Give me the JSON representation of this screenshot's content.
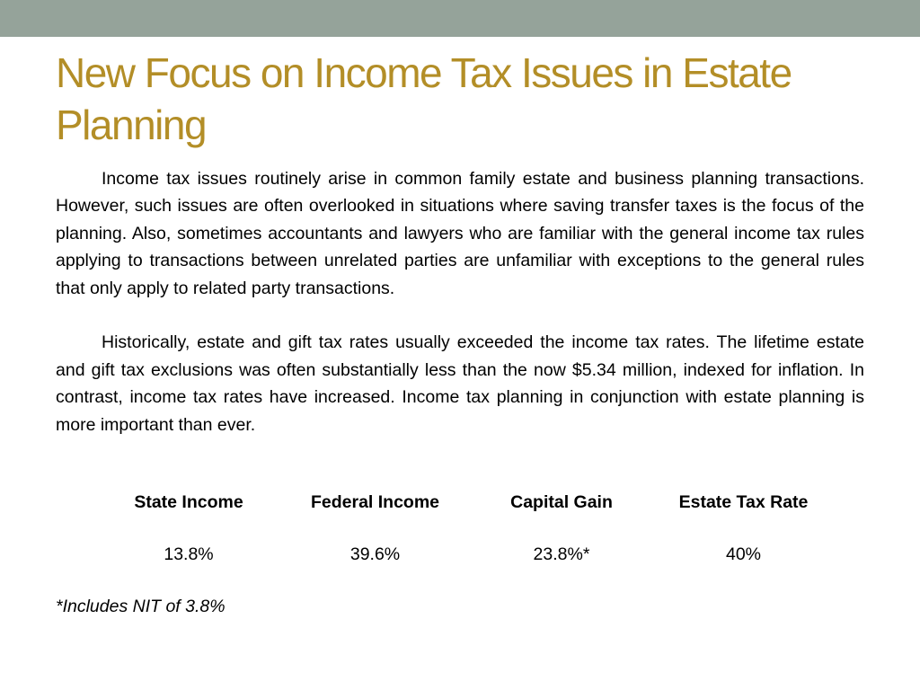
{
  "theme": {
    "top_bar_color": "#95a39a",
    "title_color": "#b38e27"
  },
  "slide": {
    "title": "New Focus on Income Tax Issues in Estate Planning",
    "paragraphs": [
      "Income tax issues routinely arise in common family estate and business planning transactions. However, such issues are often overlooked in situations where saving transfer taxes is the focus of the planning. Also, sometimes accountants and lawyers who are familiar with the general income tax rules applying to transactions between unrelated parties are unfamiliar with exceptions to the general rules that only apply to related party transactions.",
      "Historically, estate and gift tax rates usually exceeded the income tax rates.  The lifetime estate and gift tax exclusions was often substantially less than the now $5.34 million, indexed for inflation.  In contrast, income tax rates have increased.  Income tax planning in conjunction with estate planning is more important than ever."
    ],
    "rates_table": {
      "headers": [
        "State Income",
        "Federal Income",
        "Capital Gain",
        "Estate Tax Rate"
      ],
      "values": [
        "13.8%",
        "39.6%",
        "23.8%*",
        "40%"
      ]
    },
    "footnote": "*Includes NIT of 3.8%"
  }
}
